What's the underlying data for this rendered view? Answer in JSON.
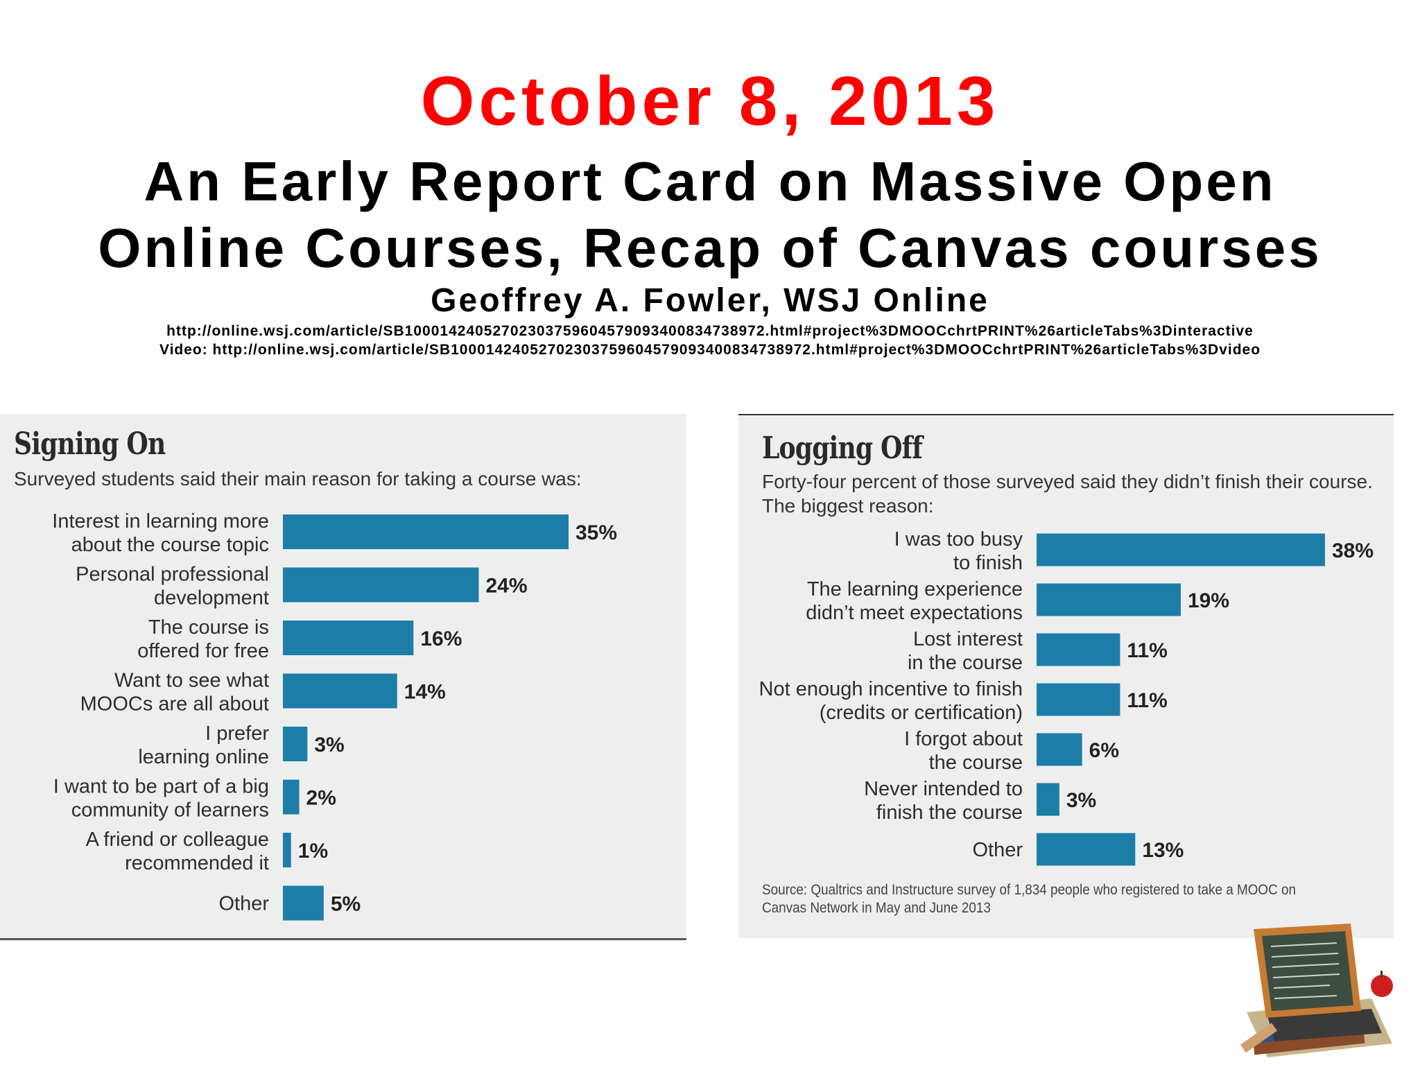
{
  "header": {
    "date": "October 8, 2013",
    "title_line1": "An Early Report Card on Massive Open",
    "title_line2": "Online Courses, Recap of Canvas courses",
    "author": "Geoffrey A. Fowler, WSJ Online",
    "url1": "http://online.wsj.com/article/SB10001424052702303759604579093400834738972.html#project%3DMOOCchrtPRINT%26articleTabs%3Dinteractive",
    "url2": "Video: http://online.wsj.com/article/SB10001424052702303759604579093400834738972.html#project%3DMOOCchrtPRINT%26articleTabs%3Dvideo"
  },
  "colors": {
    "bar": "#1c7ea8",
    "date": "#ff0000",
    "panel_bg": "#eeeeee"
  },
  "chart_data": [
    {
      "type": "bar",
      "orientation": "horizontal",
      "title": "Signing On",
      "subtitle": "Surveyed students said their main reason for taking a course was:",
      "categories": [
        [
          "Interest in learning more",
          "about the course topic"
        ],
        [
          "Personal professional",
          "development"
        ],
        [
          "The course is",
          "offered for free"
        ],
        [
          "Want to see what",
          "MOOCs are all about"
        ],
        [
          "I prefer",
          "learning online"
        ],
        [
          "I want to be part of a big",
          "community of learners"
        ],
        [
          "A friend or colleague",
          "recommended it"
        ],
        [
          "Other"
        ]
      ],
      "values": [
        35,
        24,
        16,
        14,
        3,
        2,
        1,
        5
      ],
      "value_labels": [
        "35%",
        "24%",
        "16%",
        "14%",
        "3%",
        "2%",
        "1%",
        "5%"
      ],
      "unit": "%",
      "xlim": [
        0,
        35
      ]
    },
    {
      "type": "bar",
      "orientation": "horizontal",
      "title": "Logging Off",
      "subtitle_lines": [
        "Forty-four percent of those surveyed said they didn’t finish their course.",
        "The biggest reason:"
      ],
      "categories": [
        [
          "I was too busy",
          "to finish"
        ],
        [
          "The learning experience",
          "didn’t meet expectations"
        ],
        [
          "Lost interest",
          "in the course"
        ],
        [
          "Not enough incentive to finish",
          "(credits or certification)"
        ],
        [
          "I forgot about",
          "the course"
        ],
        [
          "Never intended to",
          "finish the course"
        ],
        [
          "Other"
        ]
      ],
      "values": [
        38,
        19,
        11,
        11,
        6,
        3,
        13
      ],
      "value_labels": [
        "38%",
        "19%",
        "11%",
        "11%",
        "6%",
        "3%",
        "13%"
      ],
      "unit": "%",
      "xlim": [
        0,
        38
      ],
      "source_lines": [
        "Source: Qualtrics and Instructure survey of 1,834 people who registered to take a MOOC on",
        "Canvas Network in May and June 2013"
      ]
    }
  ]
}
